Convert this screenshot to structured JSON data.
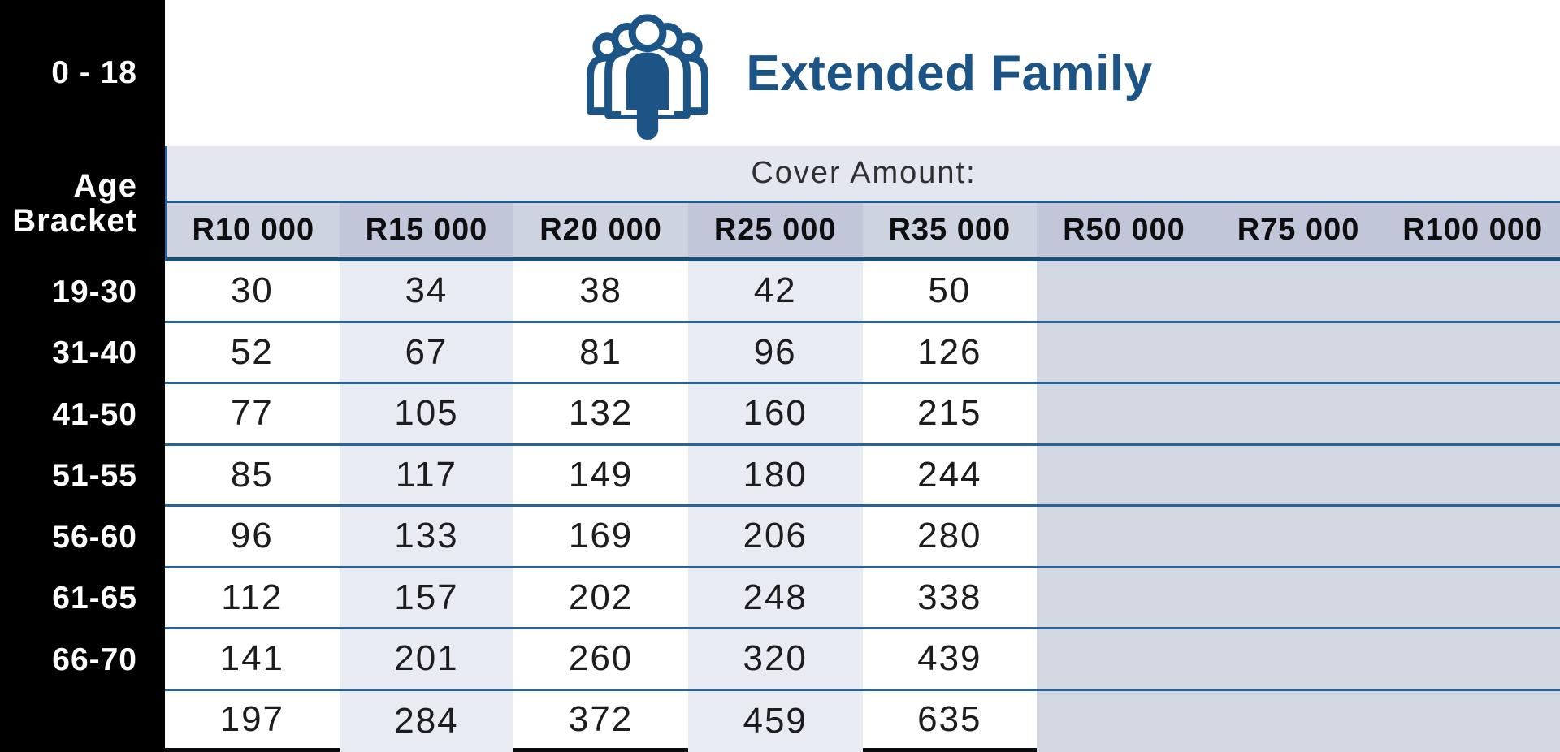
{
  "header": {
    "title": "Extended Family",
    "icon": "extended-family-group-icon"
  },
  "cover_label": "Cover Amount:",
  "age_header": {
    "line1": "Age",
    "line2": "Bracket"
  },
  "columns": [
    "R10 000",
    "R15 000",
    "R20 000",
    "R25 000",
    "R35 000",
    "R50 000",
    "R75 000",
    "R100 000"
  ],
  "rows": [
    {
      "age": "0 - 18",
      "values": [
        "30",
        "34",
        "38",
        "42",
        "50",
        "",
        "",
        ""
      ]
    },
    {
      "age": "19-30",
      "values": [
        "52",
        "67",
        "81",
        "96",
        "126",
        "",
        "",
        ""
      ]
    },
    {
      "age": "31-40",
      "values": [
        "77",
        "105",
        "132",
        "160",
        "215",
        "",
        "",
        ""
      ]
    },
    {
      "age": "41-50",
      "values": [
        "85",
        "117",
        "149",
        "180",
        "244",
        "",
        "",
        ""
      ]
    },
    {
      "age": "51-55",
      "values": [
        "96",
        "133",
        "169",
        "206",
        "280",
        "",
        "",
        ""
      ]
    },
    {
      "age": "56-60",
      "values": [
        "112",
        "157",
        "202",
        "248",
        "338",
        "",
        "",
        ""
      ]
    },
    {
      "age": "61-65",
      "values": [
        "141",
        "201",
        "260",
        "320",
        "439",
        "",
        "",
        ""
      ]
    },
    {
      "age": "66-70",
      "values": [
        "197",
        "284",
        "372",
        "459",
        "635",
        "",
        "",
        ""
      ]
    }
  ],
  "colors": {
    "brand_blue": "#1d5486",
    "line_blue": "#2b6399",
    "header_underline": "#175179",
    "cover_band_bg": "#e4e7f0",
    "header_cell_light": "#ced3e0",
    "header_cell_dark": "#c1c7d8",
    "row_stripe": "#e9ebf3",
    "disabled_region": "#d3d7e2",
    "rail_black": "#000000"
  },
  "chart_data": {
    "type": "table",
    "title": "Extended Family",
    "subtitle": "Cover Amount:",
    "row_header": "Age Bracket",
    "columns": [
      "R10 000",
      "R15 000",
      "R20 000",
      "R25 000",
      "R35 000",
      "R50 000",
      "R75 000",
      "R100 000"
    ],
    "row_labels": [
      "0 - 18",
      "19-30",
      "31-40",
      "41-50",
      "51-55",
      "56-60",
      "61-65",
      "66-70"
    ],
    "values": [
      [
        30,
        34,
        38,
        42,
        50,
        null,
        null,
        null
      ],
      [
        52,
        67,
        81,
        96,
        126,
        null,
        null,
        null
      ],
      [
        77,
        105,
        132,
        160,
        215,
        null,
        null,
        null
      ],
      [
        85,
        117,
        149,
        180,
        244,
        null,
        null,
        null
      ],
      [
        96,
        133,
        169,
        206,
        280,
        null,
        null,
        null
      ],
      [
        112,
        157,
        202,
        248,
        338,
        null,
        null,
        null
      ],
      [
        141,
        201,
        260,
        320,
        439,
        null,
        null,
        null
      ],
      [
        197,
        284,
        372,
        459,
        635,
        null,
        null,
        null
      ]
    ],
    "notes": "Premiums shown for cover amounts R10 000 to R35 000; R50 000, R75 000 and R100 000 columns are greyed out with no values."
  }
}
